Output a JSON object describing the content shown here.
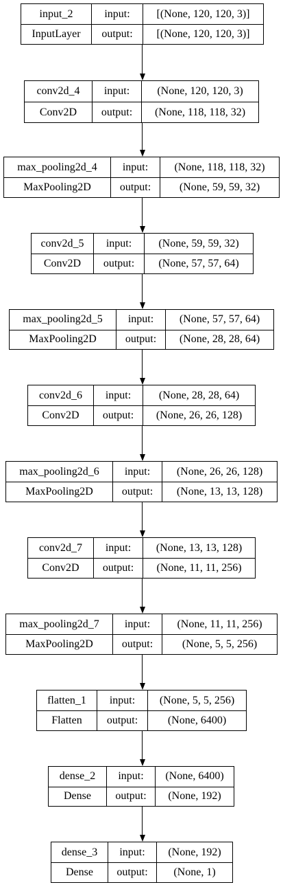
{
  "diagram": {
    "port_labels": {
      "input": "input:",
      "output": "output:"
    },
    "layers": [
      {
        "name": "input_2",
        "type": "InputLayer",
        "input_shape": "[(None, 120, 120, 3)]",
        "output_shape": "[(None, 120, 120, 3)]"
      },
      {
        "name": "conv2d_4",
        "type": "Conv2D",
        "input_shape": "(None, 120, 120, 3)",
        "output_shape": "(None, 118, 118, 32)"
      },
      {
        "name": "max_pooling2d_4",
        "type": "MaxPooling2D",
        "input_shape": "(None, 118, 118, 32)",
        "output_shape": "(None, 59, 59, 32)"
      },
      {
        "name": "conv2d_5",
        "type": "Conv2D",
        "input_shape": "(None, 59, 59, 32)",
        "output_shape": "(None, 57, 57, 64)"
      },
      {
        "name": "max_pooling2d_5",
        "type": "MaxPooling2D",
        "input_shape": "(None, 57, 57, 64)",
        "output_shape": "(None, 28, 28, 64)"
      },
      {
        "name": "conv2d_6",
        "type": "Conv2D",
        "input_shape": "(None, 28, 28, 64)",
        "output_shape": "(None, 26, 26, 128)"
      },
      {
        "name": "max_pooling2d_6",
        "type": "MaxPooling2D",
        "input_shape": "(None, 26, 26, 128)",
        "output_shape": "(None, 13, 13, 128)"
      },
      {
        "name": "conv2d_7",
        "type": "Conv2D",
        "input_shape": "(None, 13, 13, 128)",
        "output_shape": "(None, 11, 11, 256)"
      },
      {
        "name": "max_pooling2d_7",
        "type": "MaxPooling2D",
        "input_shape": "(None, 11, 11, 256)",
        "output_shape": "(None, 5, 5, 256)"
      },
      {
        "name": "flatten_1",
        "type": "Flatten",
        "input_shape": "(None, 5, 5, 256)",
        "output_shape": "(None, 6400)"
      },
      {
        "name": "dense_2",
        "type": "Dense",
        "input_shape": "(None, 6400)",
        "output_shape": "(None, 192)"
      },
      {
        "name": "dense_3",
        "type": "Dense",
        "input_shape": "(None, 192)",
        "output_shape": "(None, 1)"
      }
    ]
  }
}
